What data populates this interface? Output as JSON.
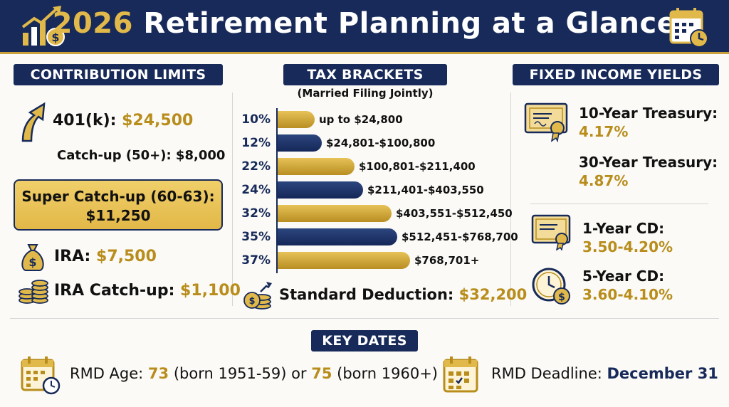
{
  "header": {
    "title_year": "2026",
    "title_rest": "Retirement Planning at a Glance"
  },
  "contribution": {
    "heading": "CONTRIBUTION LIMITS",
    "k401_label": "401(k): ",
    "k401_value": "$24,500",
    "catchup": "Catch-up (50+): $8,000",
    "super_label": "Super Catch-up (60-63):",
    "super_value": "$11,250",
    "ira_label": "IRA: ",
    "ira_value": "$7,500",
    "ira_catchup_label": "IRA Catch-up: ",
    "ira_catchup_value": "$1,100"
  },
  "tax": {
    "heading": "TAX BRACKETS",
    "subheading": "(Married Filing Jointly)",
    "brackets": [
      {
        "rate": "10%",
        "range": "up to $24,800",
        "color": "gold"
      },
      {
        "rate": "12%",
        "range": "$24,801-$100,800",
        "color": "navy"
      },
      {
        "rate": "22%",
        "range": "$100,801-$211,400",
        "color": "gold"
      },
      {
        "rate": "24%",
        "range": "$211,401-$403,550",
        "color": "navy"
      },
      {
        "rate": "32%",
        "range": "$403,551-$512,450",
        "color": "gold"
      },
      {
        "rate": "35%",
        "range": "$512,451-$768,700",
        "color": "navy"
      },
      {
        "rate": "37%",
        "range": "$768,701+",
        "color": "gold"
      }
    ],
    "std_label": "Standard Deduction: ",
    "std_value": "$32,200"
  },
  "yields": {
    "heading": "FIXED INCOME YIELDS",
    "t10_label": "10-Year Treasury:",
    "t10_value": "4.17%",
    "t30_label": "30-Year Treasury:",
    "t30_value": "4.87%",
    "cd1_label": "1-Year CD:",
    "cd1_value": "3.50-4.20%",
    "cd5_label": "5-Year CD:",
    "cd5_value": "3.60-4.10%"
  },
  "dates": {
    "heading": "KEY DATES",
    "rmd_age_label": "RMD Age: ",
    "rmd_age_1": "73",
    "rmd_age_mid": " (born 1951-59) or ",
    "rmd_age_2": "75",
    "rmd_age_end": " (born 1960+)",
    "rmd_deadline_label": "RMD Deadline: ",
    "rmd_deadline_value": "December 31"
  },
  "icons": [
    "growth-chart-icon",
    "calendar-clock-icon",
    "up-arrow-icon",
    "money-bag-icon",
    "coin-stack-icon",
    "coins-growth-icon",
    "certificate-icon",
    "clock-dollar-icon",
    "calendar-icon"
  ],
  "colors": {
    "navy": "#172a59",
    "gold": "#c9a13b",
    "background": "#fbfaf6"
  }
}
